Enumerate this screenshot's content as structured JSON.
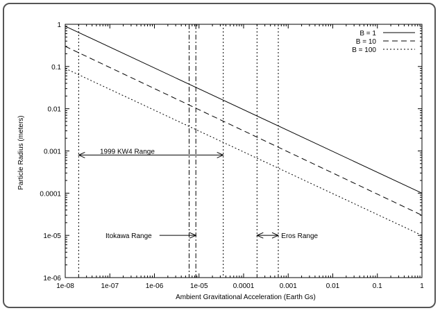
{
  "chart_data": {
    "type": "line",
    "xlabel": "Ambient Gravitational Acceleration (Earth Gs)",
    "ylabel": "Particle Radius (meters)",
    "x_scale": "log",
    "y_scale": "log",
    "xlim": [
      1e-08,
      1
    ],
    "ylim": [
      1e-06,
      1
    ],
    "x_ticks": [
      "1e-08",
      "1e-07",
      "1e-06",
      "1e-05",
      "0.0001",
      "0.001",
      "0.01",
      "0.1",
      "1"
    ],
    "y_ticks": [
      "1",
      "0.1",
      "0.01",
      "0.001",
      "0.0001",
      "1e-05",
      "1e-06"
    ],
    "grid": false,
    "legend_position": "top-right",
    "series": [
      {
        "name": "B = 1",
        "style": "solid",
        "x": [
          1e-08,
          1
        ],
        "y": [
          0.9,
          0.0001
        ]
      },
      {
        "name": "B = 10",
        "style": "dashed",
        "x": [
          1e-08,
          1
        ],
        "y": [
          0.3,
          3e-05
        ]
      },
      {
        "name": "B = 100",
        "style": "dotted",
        "x": [
          1e-08,
          1
        ],
        "y": [
          0.09,
          1e-05
        ]
      }
    ],
    "vertical_lines": [
      {
        "x": 2e-08,
        "style": "dotted"
      },
      {
        "x": 6e-06,
        "style": "dashdot"
      },
      {
        "x": 8.5e-06,
        "style": "dashdot"
      },
      {
        "x": 3.5e-05,
        "style": "dotted"
      },
      {
        "x": 0.0002,
        "style": "dotted"
      },
      {
        "x": 0.0006,
        "style": "dotted"
      }
    ],
    "annotations": [
      {
        "text": "1999 KW4 Range",
        "arrow": "double",
        "x_from": 2e-08,
        "x_to": 3.5e-05,
        "y": 0.0008,
        "label_x": 6e-08,
        "label_y": 0.001
      },
      {
        "text": "Itokawa Range",
        "arrow": "right",
        "x_from": 1.3e-06,
        "x_to": 8.5e-06,
        "y": 1e-05,
        "label_x": 8e-08,
        "label_y": 1e-05
      },
      {
        "text": "Eros Range",
        "arrow": "double",
        "x_from": 0.0002,
        "x_to": 0.0006,
        "y": 1e-05,
        "label_x": 0.0007,
        "label_y": 1e-05
      }
    ]
  }
}
